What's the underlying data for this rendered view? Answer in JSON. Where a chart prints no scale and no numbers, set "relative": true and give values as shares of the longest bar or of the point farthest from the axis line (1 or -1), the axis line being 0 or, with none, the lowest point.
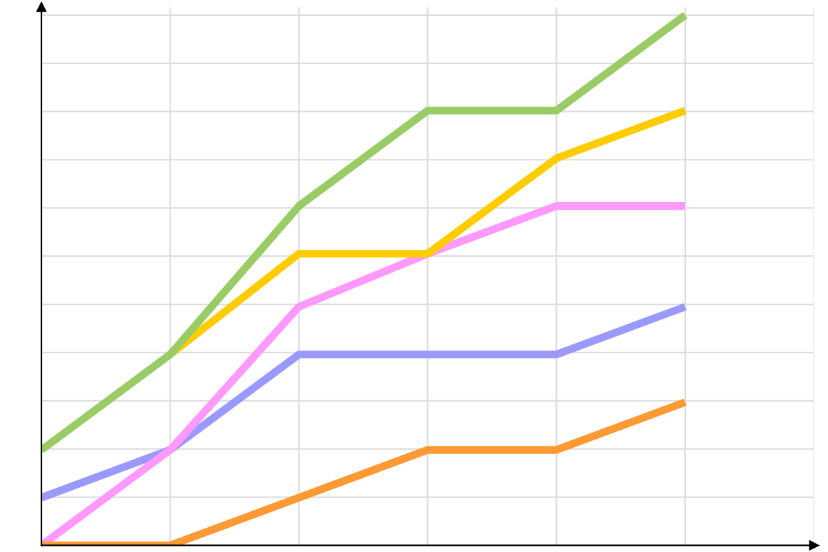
{
  "chart_data": {
    "type": "line",
    "relative": true,
    "grid": true,
    "legend": false,
    "marker": "none",
    "line_style": "solid",
    "categories": [
      null,
      null,
      null,
      null,
      null,
      null,
      null
    ],
    "series": [
      {
        "color": "#9999ff",
        "values": [
          0.09,
          0.18,
          0.36,
          0.36,
          0.36,
          0.45,
          null
        ]
      },
      {
        "color": "#ff99ff",
        "values": [
          0,
          0.18,
          0.45,
          0.55,
          0.64,
          0.64,
          null
        ]
      },
      {
        "color": "#ffcc00",
        "values": [
          null,
          0.36,
          0.55,
          0.55,
          0.73,
          0.82,
          null
        ]
      },
      {
        "color": "#99cc66",
        "values": [
          0.18,
          0.36,
          0.64,
          0.82,
          0.82,
          1,
          null
        ]
      },
      {
        "color": "#ff9933",
        "values": [
          0,
          0,
          0.09,
          0.18,
          0.18,
          0.27,
          null
        ]
      }
    ]
  }
}
